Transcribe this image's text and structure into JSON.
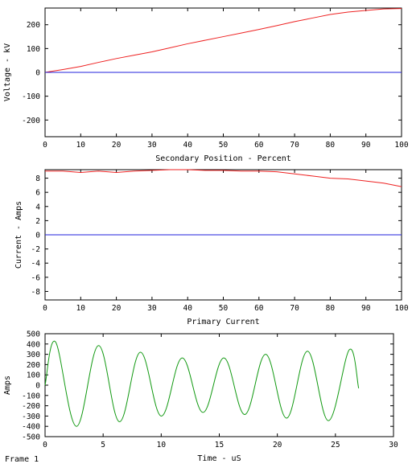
{
  "frame_label": "Frame 1",
  "colors": {
    "red": "#ee2222",
    "blue": "#2222dd",
    "green": "#119911",
    "axis": "#000000"
  },
  "chart_data": [
    {
      "type": "line",
      "xlabel": "Secondary Position - Percent",
      "ylabel": "Voltage - kV",
      "xlim": [
        0,
        100
      ],
      "ylim": [
        -270,
        270
      ],
      "xticks": [
        0,
        10,
        20,
        30,
        40,
        50,
        60,
        70,
        80,
        90,
        100
      ],
      "yticks": [
        -200,
        -100,
        0,
        100,
        200
      ],
      "series": [
        {
          "color": "#ee2222",
          "x": [
            0,
            5,
            10,
            15,
            20,
            25,
            30,
            35,
            40,
            45,
            50,
            55,
            60,
            65,
            70,
            75,
            80,
            85,
            90,
            95,
            100
          ],
          "y": [
            0,
            12,
            25,
            42,
            58,
            72,
            86,
            103,
            120,
            135,
            150,
            165,
            180,
            196,
            213,
            228,
            243,
            253,
            260,
            266,
            268
          ]
        },
        {
          "color": "#2222dd",
          "x": [
            0,
            100
          ],
          "y": [
            0,
            0
          ]
        }
      ]
    },
    {
      "type": "line",
      "xlabel": "",
      "ylabel": "Current - Amps",
      "xlim": [
        0,
        100
      ],
      "ylim": [
        -9.2,
        9.2
      ],
      "xticks": [
        0,
        10,
        20,
        30,
        40,
        50,
        60,
        70,
        80,
        90,
        100
      ],
      "yticks": [
        -8,
        -6,
        -4,
        -2,
        0,
        2,
        4,
        6,
        8
      ],
      "series": [
        {
          "color": "#ee2222",
          "x": [
            0,
            5,
            10,
            15,
            20,
            25,
            30,
            35,
            40,
            45,
            50,
            55,
            60,
            65,
            70,
            75,
            80,
            85,
            90,
            95,
            100
          ],
          "y": [
            9.0,
            9.0,
            8.8,
            9.0,
            8.8,
            9.0,
            9.1,
            9.2,
            9.2,
            9.1,
            9.1,
            9.0,
            9.0,
            8.9,
            8.6,
            8.3,
            8.0,
            7.9,
            7.6,
            7.3,
            6.8
          ]
        },
        {
          "color": "#2222dd",
          "x": [
            0,
            100
          ],
          "y": [
            0,
            0
          ]
        }
      ]
    },
    {
      "type": "line",
      "title": "Primary Current",
      "xlabel": "Time - uS",
      "ylabel": "Amps",
      "xlim": [
        0,
        30
      ],
      "ylim": [
        -500,
        500
      ],
      "xticks": [
        0,
        5,
        10,
        15,
        20,
        25,
        30
      ],
      "yticks": [
        -500,
        -400,
        -300,
        -200,
        -100,
        0,
        100,
        200,
        300,
        400,
        500
      ],
      "series": [
        {
          "color": "#119911",
          "x": [
            0,
            0.9,
            2.7,
            4.6,
            6.4,
            8.2,
            10.0,
            11.8,
            13.6,
            15.4,
            17.2,
            19.0,
            20.8,
            22.6,
            24.4,
            26.2,
            27.0
          ],
          "y": [
            0,
            420,
            -400,
            385,
            -355,
            320,
            -300,
            265,
            -265,
            265,
            -285,
            300,
            -320,
            330,
            -345,
            345,
            -30
          ]
        }
      ]
    }
  ]
}
